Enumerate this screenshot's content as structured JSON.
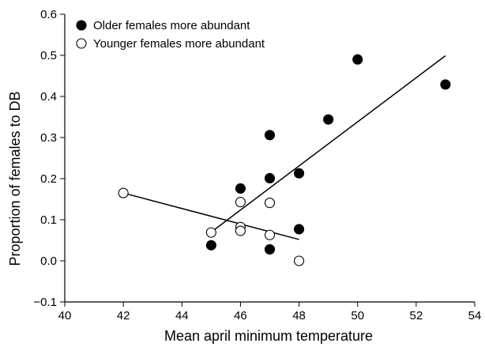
{
  "chart_data": {
    "type": "scatter",
    "title": "",
    "xlabel": "Mean april minimum temperature",
    "ylabel": "Proportion of females to DB",
    "xlim": [
      40,
      54
    ],
    "ylim": [
      -0.1,
      0.6
    ],
    "x_ticks": [
      40,
      42,
      44,
      46,
      48,
      50,
      52,
      54
    ],
    "y_ticks": [
      -0.1,
      0.0,
      0.1,
      0.2,
      0.3,
      0.4,
      0.5,
      0.6
    ],
    "x_tick_labels": [
      "40",
      "42",
      "44",
      "46",
      "48",
      "50",
      "52",
      "54"
    ],
    "y_tick_labels": [
      "−0.1",
      "0.0",
      "0.1",
      "0.2",
      "0.3",
      "0.4",
      "0.5",
      "0.6"
    ],
    "grid": false,
    "legend_position": "top-left",
    "series": [
      {
        "name": "Older females more abundant",
        "marker": "filled-circle",
        "color": "#000000",
        "points": [
          {
            "x": 45,
            "y": 0.038
          },
          {
            "x": 46,
            "y": 0.176
          },
          {
            "x": 47,
            "y": 0.306
          },
          {
            "x": 47,
            "y": 0.201
          },
          {
            "x": 47,
            "y": 0.028
          },
          {
            "x": 48,
            "y": 0.213
          },
          {
            "x": 48,
            "y": 0.077
          },
          {
            "x": 49,
            "y": 0.344
          },
          {
            "x": 50,
            "y": 0.49
          },
          {
            "x": 53,
            "y": 0.429
          }
        ],
        "trendline": {
          "x": [
            45,
            53
          ],
          "y": [
            0.07,
            0.499
          ]
        }
      },
      {
        "name": "Younger females more abundant",
        "marker": "open-circle",
        "color": "#000000",
        "points": [
          {
            "x": 42,
            "y": 0.165
          },
          {
            "x": 45,
            "y": 0.069
          },
          {
            "x": 46,
            "y": 0.143
          },
          {
            "x": 46,
            "y": 0.082
          },
          {
            "x": 46,
            "y": 0.073
          },
          {
            "x": 47,
            "y": 0.141
          },
          {
            "x": 47,
            "y": 0.063
          },
          {
            "x": 48,
            "y": 0.0
          }
        ],
        "trendline": {
          "x": [
            42,
            48
          ],
          "y": [
            0.165,
            0.052
          ]
        }
      }
    ]
  }
}
